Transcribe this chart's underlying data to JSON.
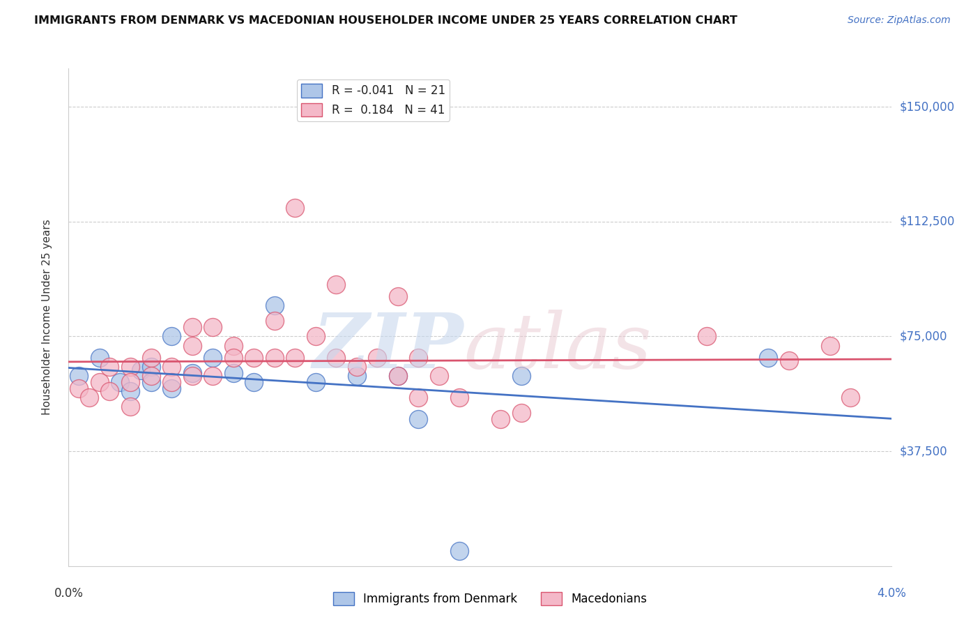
{
  "title": "IMMIGRANTS FROM DENMARK VS MACEDONIAN HOUSEHOLDER INCOME UNDER 25 YEARS CORRELATION CHART",
  "source": "Source: ZipAtlas.com",
  "ylabel": "Householder Income Under 25 years",
  "yticks": [
    0,
    37500,
    75000,
    112500,
    150000
  ],
  "ytick_labels": [
    "",
    "$37,500",
    "$75,000",
    "$112,500",
    "$150,000"
  ],
  "xlim": [
    0.0,
    0.04
  ],
  "ylim": [
    0,
    162500
  ],
  "legend_bottom": [
    "Immigrants from Denmark",
    "Macedonians"
  ],
  "denmark_color": "#aec6e8",
  "macedonian_color": "#f4b8c8",
  "denmark_line_color": "#4472c4",
  "macedonian_line_color": "#d9546e",
  "denmark_x": [
    0.0005,
    0.0015,
    0.0025,
    0.003,
    0.0035,
    0.004,
    0.004,
    0.005,
    0.005,
    0.006,
    0.007,
    0.008,
    0.009,
    0.01,
    0.012,
    0.014,
    0.016,
    0.017,
    0.019,
    0.022,
    0.034
  ],
  "denmark_y": [
    62000,
    68000,
    60000,
    57000,
    64000,
    65000,
    60000,
    75000,
    58000,
    63000,
    68000,
    63000,
    60000,
    85000,
    60000,
    62000,
    62000,
    48000,
    5000,
    62000,
    68000
  ],
  "macedonian_x": [
    0.0005,
    0.001,
    0.0015,
    0.002,
    0.002,
    0.003,
    0.003,
    0.003,
    0.004,
    0.004,
    0.005,
    0.005,
    0.006,
    0.006,
    0.006,
    0.007,
    0.007,
    0.008,
    0.008,
    0.009,
    0.01,
    0.01,
    0.011,
    0.011,
    0.012,
    0.013,
    0.013,
    0.014,
    0.015,
    0.016,
    0.016,
    0.017,
    0.017,
    0.018,
    0.019,
    0.021,
    0.022,
    0.031,
    0.035,
    0.037,
    0.038
  ],
  "macedonian_y": [
    58000,
    55000,
    60000,
    65000,
    57000,
    65000,
    60000,
    52000,
    68000,
    62000,
    65000,
    60000,
    78000,
    72000,
    62000,
    78000,
    62000,
    72000,
    68000,
    68000,
    80000,
    68000,
    117000,
    68000,
    75000,
    92000,
    68000,
    65000,
    68000,
    88000,
    62000,
    68000,
    55000,
    62000,
    55000,
    48000,
    50000,
    75000,
    67000,
    72000,
    55000
  ]
}
